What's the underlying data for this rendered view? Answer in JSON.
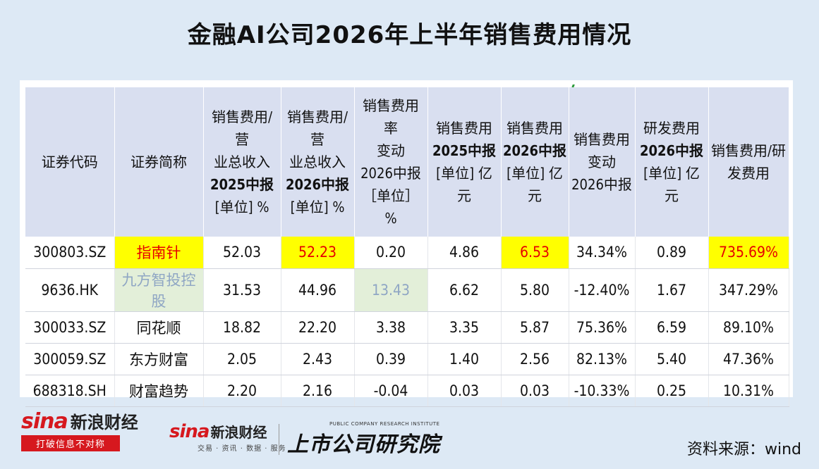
{
  "title": "金融AI公司2026年上半年销售费用情况",
  "headers": [
    {
      "lines": [
        {
          "t": "证券代码",
          "b": false
        }
      ]
    },
    {
      "lines": [
        {
          "t": "证券简称",
          "b": false
        }
      ]
    },
    {
      "lines": [
        {
          "t": "销售费用/营",
          "b": false
        },
        {
          "t": "业总收入",
          "b": false
        },
        {
          "t": "2025中报",
          "b": true
        },
        {
          "t": "[单位] %",
          "b": false
        }
      ]
    },
    {
      "lines": [
        {
          "t": "销售费用/营",
          "b": false
        },
        {
          "t": "业总收入",
          "b": false
        },
        {
          "t": "2026中报",
          "b": true
        },
        {
          "t": "[单位] %",
          "b": false
        }
      ]
    },
    {
      "lines": [
        {
          "t": "销售费用率",
          "b": false
        },
        {
          "t": "变动",
          "b": false
        },
        {
          "t": "2026中报",
          "b": false
        },
        {
          "t": "［单位］ %",
          "b": false
        }
      ]
    },
    {
      "lines": [
        {
          "t": "销售费用",
          "b": false
        },
        {
          "t": "2025中报",
          "b": true
        },
        {
          "t": "[单位] 亿元",
          "b": false
        }
      ]
    },
    {
      "lines": [
        {
          "t": "销售费用",
          "b": false
        },
        {
          "t": "2026中报",
          "b": true
        },
        {
          "t": "[单位] 亿元",
          "b": false
        }
      ]
    },
    {
      "lines": [
        {
          "t": "销售费用",
          "b": false
        },
        {
          "t": "变动",
          "b": false
        },
        {
          "t": "2026中报",
          "b": false
        }
      ]
    },
    {
      "lines": [
        {
          "t": "研发费用",
          "b": false
        },
        {
          "t": "2026中报",
          "b": true
        },
        {
          "t": "[单位] 亿元",
          "b": false
        }
      ]
    },
    {
      "lines": [
        {
          "t": "销售费用/研",
          "b": false
        },
        {
          "t": "发费用",
          "b": false
        }
      ]
    }
  ],
  "rows": [
    {
      "cells": [
        "300803.SZ",
        "指南针",
        "52.03",
        "52.23",
        "0.20",
        "4.86",
        "6.53",
        "34.34%",
        "0.89",
        "735.69%"
      ],
      "hl": [
        1,
        3,
        6,
        9
      ],
      "gr": []
    },
    {
      "cells": [
        "9636.HK",
        "九方智投控股",
        "31.53",
        "44.96",
        "13.43",
        "6.62",
        "5.80",
        "-12.40%",
        "1.67",
        "347.29%"
      ],
      "hl": [],
      "gr": [
        1,
        4
      ]
    },
    {
      "cells": [
        "300033.SZ",
        "同花顺",
        "18.82",
        "22.20",
        "3.38",
        "3.35",
        "5.87",
        "75.36%",
        "6.59",
        "89.10%"
      ],
      "hl": [],
      "gr": []
    },
    {
      "cells": [
        "300059.SZ",
        "东方财富",
        "2.05",
        "2.43",
        "0.39",
        "1.40",
        "2.56",
        "82.13%",
        "5.40",
        "47.36%"
      ],
      "hl": [],
      "gr": []
    },
    {
      "cells": [
        "688318.SH",
        "财富趋势",
        "2.20",
        "2.16",
        "-0.04",
        "0.03",
        "0.03",
        "-10.33%",
        "0.25",
        "10.31%"
      ],
      "hl": [],
      "gr": []
    }
  ],
  "logo1": {
    "sina": "sina",
    "brand": "新浪财经",
    "slogan": "打破信息不对称"
  },
  "logo2": {
    "sina": "sina",
    "brand": "新浪财经",
    "sub": "交易 · 资讯 · 数据 · 服务"
  },
  "logo3": {
    "en": "PUBLIC COMPANY RESEARCH INSTITUTE",
    "cn": "上市公司研究院"
  },
  "source": "资料来源：wind",
  "colors": {
    "background": "#dde9f5",
    "header": "#d9dff0",
    "highlight": "#ffff00",
    "highlight_text": "#e60000",
    "muted_cell": "#e3efd9"
  }
}
